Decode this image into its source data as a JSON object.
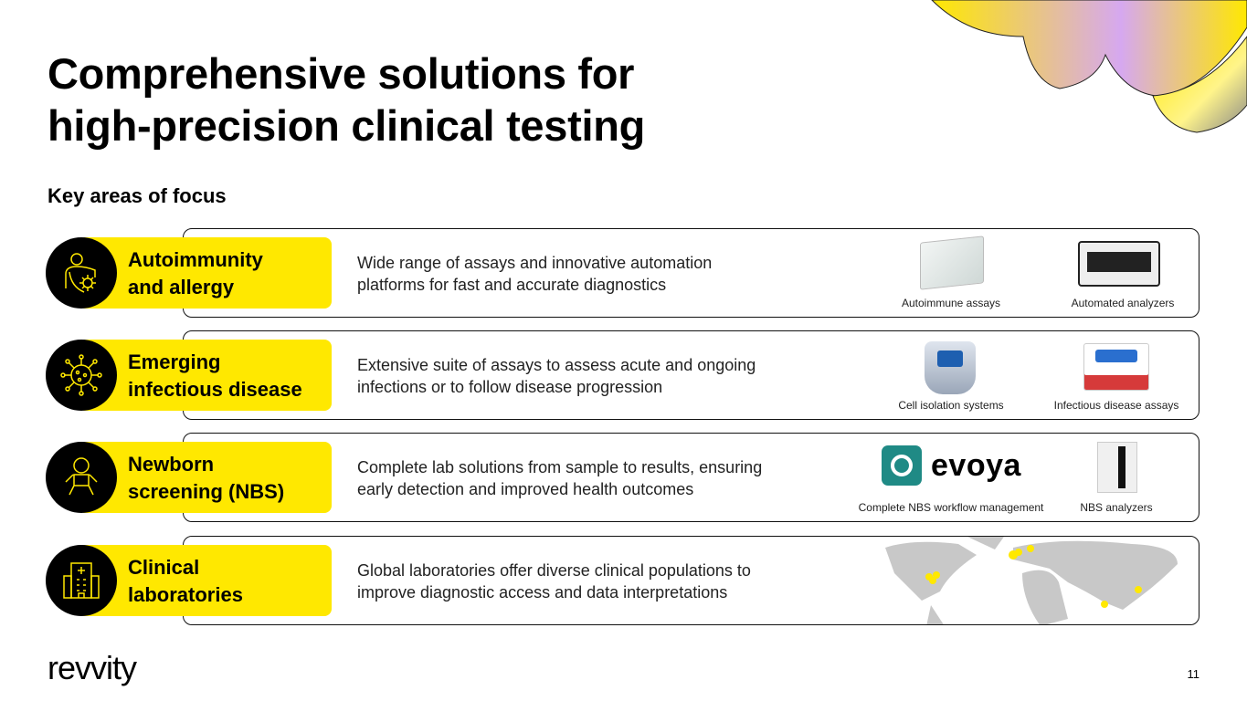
{
  "title": [
    "Comprehensive solutions for",
    "high-precision clinical testing"
  ],
  "subtitle": "Key areas of focus",
  "areas": [
    {
      "name": [
        "Autoimmunity",
        "and allergy"
      ],
      "icon": "person-shield-virus-icon",
      "description": [
        "Wide range of assays and innovative automation",
        "platforms for fast and accurate diagnostics"
      ],
      "products": [
        "Autoimmune assays",
        "Automated analyzers"
      ]
    },
    {
      "name": [
        "Emerging",
        "infectious disease"
      ],
      "icon": "virus-icon",
      "description": [
        "Extensive suite of assays to assess acute and ongoing",
        "infections or to follow disease progression"
      ],
      "products": [
        "Cell isolation systems",
        "Infectious disease assays"
      ]
    },
    {
      "name": [
        "Newborn",
        "screening (NBS)"
      ],
      "icon": "baby-icon",
      "description": [
        "Complete lab solutions from sample to results, ensuring",
        "early detection and improved health outcomes"
      ],
      "products": [
        "Complete NBS workflow management",
        "NBS analyzers"
      ],
      "brand": "evoya"
    },
    {
      "name": [
        "Clinical",
        "laboratories"
      ],
      "icon": "hospital-icon",
      "description": [
        "Global laboratories offer diverse clinical populations to",
        "improve diagnostic access and data interpretations"
      ],
      "products": []
    }
  ],
  "footer": {
    "logo": "revvity",
    "page": "11"
  },
  "colors": {
    "accent": "#ffe800",
    "evoya": "#1f8a85",
    "map": "#c8c8c8"
  }
}
